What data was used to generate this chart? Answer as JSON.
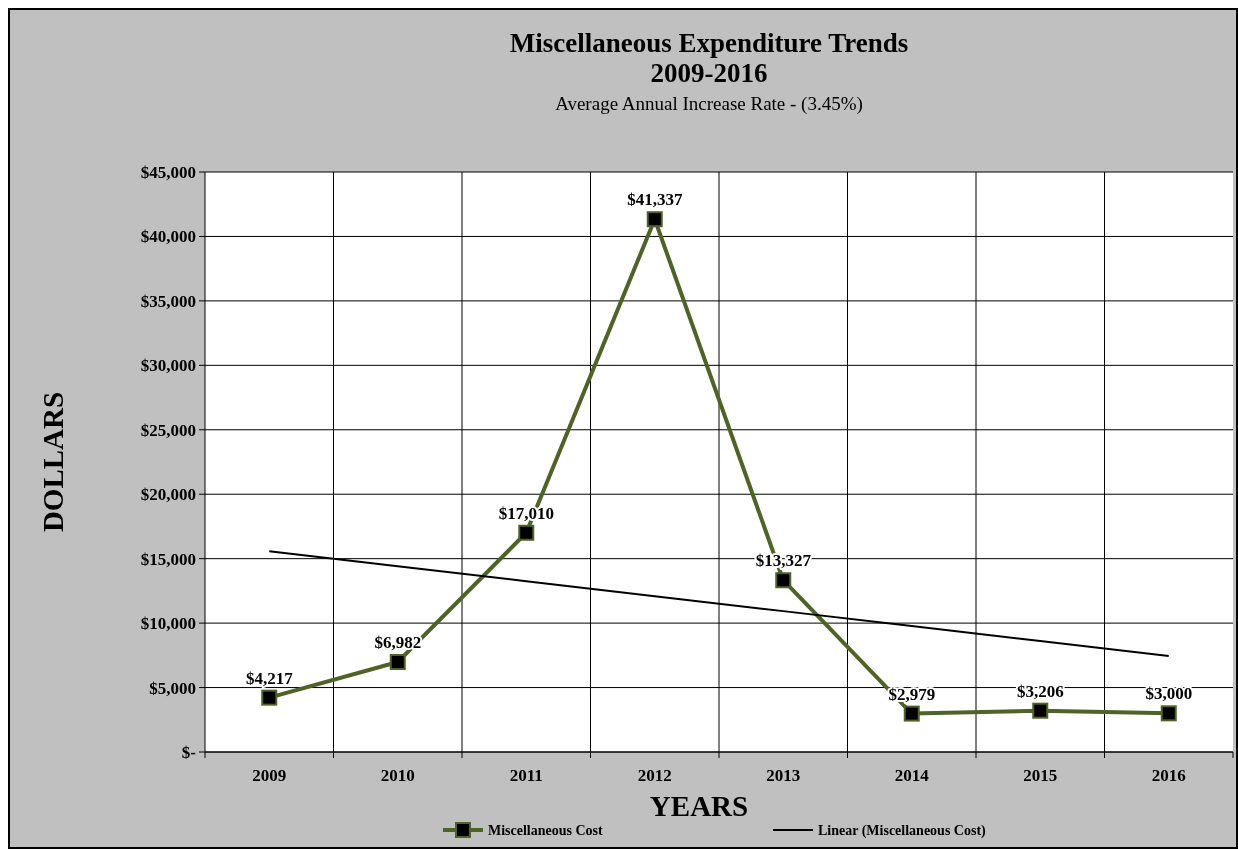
{
  "chart_data": {
    "type": "line",
    "title": "Miscellaneous Expenditure Trends\n2009-2016",
    "subtitle": "Average Annual Increase Rate - (3.45%)",
    "xlabel": "YEARS",
    "ylabel": "DOLLARS",
    "categories": [
      "2009",
      "2010",
      "2011",
      "2012",
      "2013",
      "2014",
      "2015",
      "2016"
    ],
    "series": [
      {
        "name": "Miscellaneous Cost",
        "color": "#4f6228",
        "values": [
          4217,
          6982,
          17010,
          41337,
          13327,
          2979,
          3206,
          3000
        ],
        "marker": "square",
        "value_labels": [
          "$4,217",
          "$6,982",
          "$17,010",
          "$41,337",
          "$13,327",
          "$2,979",
          "$3,206",
          "$3,000"
        ]
      },
      {
        "name": "Linear (Miscellaneous Cost)",
        "color": "#000000",
        "values": [
          15570,
          14410,
          13250,
          12090,
          10930,
          9770,
          8610,
          7450
        ],
        "marker": "none"
      }
    ],
    "ylim": [
      0,
      45000
    ],
    "yticks": [
      {
        "value": 0,
        "label": "$-"
      },
      {
        "value": 5000,
        "label": "$5,000"
      },
      {
        "value": 10000,
        "label": "$10,000"
      },
      {
        "value": 15000,
        "label": "$15,000"
      },
      {
        "value": 20000,
        "label": "$20,000"
      },
      {
        "value": 25000,
        "label": "$25,000"
      },
      {
        "value": 30000,
        "label": "$30,000"
      },
      {
        "value": 35000,
        "label": "$35,000"
      },
      {
        "value": 40000,
        "label": "$40,000"
      },
      {
        "value": 45000,
        "label": "$45,000"
      }
    ],
    "grid": true,
    "legend": "bottom",
    "line_style": "solid"
  }
}
